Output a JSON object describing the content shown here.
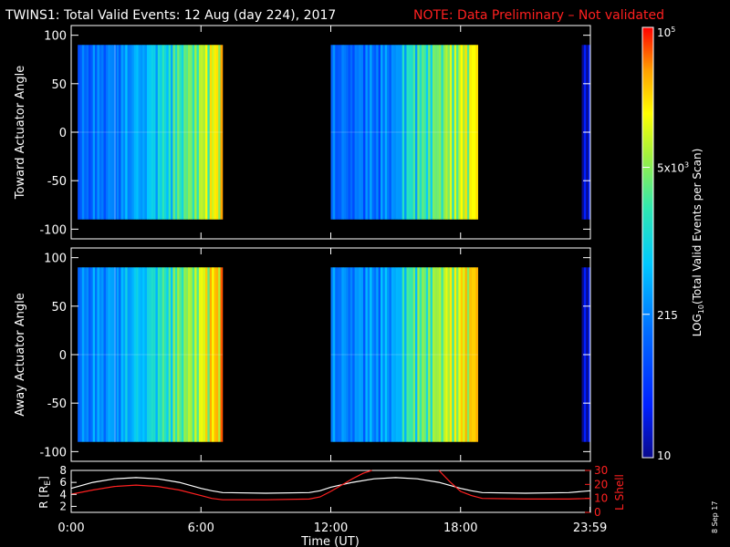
{
  "header": {
    "title": "TWINS1: Total Valid Events: 12 Aug (day 224), 2017",
    "note": "NOTE: Data Preliminary – Not validated",
    "note_color": "#ff2020"
  },
  "side_date": "8 Sep 17",
  "chart_data": [
    {
      "type": "heatmap",
      "id": "toward",
      "ylabel": "Toward Actuator Angle",
      "yticks": [
        "100",
        "50",
        "0",
        "-50",
        "-100"
      ],
      "ylim": [
        -110,
        110
      ],
      "data_angle_range": [
        -90,
        90
      ],
      "xlim_hours": [
        0,
        24
      ],
      "data_segments_hours": [
        [
          0.3,
          7.0
        ],
        [
          12.0,
          18.8
        ],
        [
          23.6,
          24.0
        ]
      ],
      "low_count_band_hours": [
        2.0,
        3.9
      ]
    },
    {
      "type": "heatmap",
      "id": "away",
      "ylabel": "Away Actuator Angle",
      "yticks": [
        "100",
        "50",
        "0",
        "-50",
        "-100"
      ],
      "ylim": [
        -110,
        110
      ],
      "data_angle_range": [
        -90,
        90
      ],
      "xlim_hours": [
        0,
        24
      ],
      "data_segments_hours": [
        [
          0.3,
          7.0
        ],
        [
          12.0,
          18.8
        ],
        [
          23.6,
          24.0
        ]
      ],
      "low_count_band_hours": [
        2.0,
        3.9
      ]
    },
    {
      "type": "line",
      "id": "orbit",
      "ylabel_left": "R [R",
      "ylabel_left_sub": "E",
      "ylabel_left_close": "]",
      "ylabel_right": "L Shell",
      "yticks_left": [
        "8",
        "6",
        "4",
        "2"
      ],
      "ylim_left": [
        1,
        8
      ],
      "yticks_right": [
        "30",
        "20",
        "10",
        "0"
      ],
      "ylim_right": [
        0,
        30
      ],
      "right_axis_color": "#ff2020",
      "xlabel": "Time (UT)",
      "xticks": [
        {
          "h": 0,
          "label": "0:00"
        },
        {
          "h": 6,
          "label": "6:00"
        },
        {
          "h": 12,
          "label": "12:00"
        },
        {
          "h": 18,
          "label": "18:00"
        },
        {
          "h": 23.983,
          "label": "23:59"
        }
      ],
      "series": [
        {
          "color": "#ffffff",
          "x": [
            0,
            1,
            2,
            3,
            4,
            5,
            6,
            6.5,
            7,
            9,
            11,
            11.5,
            12,
            13,
            14,
            15,
            16,
            17,
            18,
            18.5,
            19,
            21,
            23,
            24
          ],
          "y": [
            5.0,
            6.0,
            6.6,
            6.8,
            6.6,
            6.0,
            5.0,
            4.6,
            4.3,
            4.2,
            4.3,
            4.6,
            5.2,
            6.0,
            6.6,
            6.8,
            6.6,
            6.0,
            5.0,
            4.6,
            4.3,
            4.2,
            4.3,
            4.6
          ]
        },
        {
          "color": "#ff2020",
          "x": [
            0,
            1,
            2,
            3,
            4,
            5,
            6,
            6.5,
            7,
            9,
            11,
            11.5,
            12,
            13,
            13.5,
            13.9
          ],
          "y": [
            13,
            16,
            18.5,
            19.5,
            18.5,
            16,
            12,
            10,
            9,
            9,
            9.5,
            11,
            15,
            24,
            28,
            30
          ]
        },
        {
          "color": "#ff2020",
          "x": [
            17.0,
            17.5,
            18,
            18.5,
            19,
            21,
            23,
            24
          ],
          "y": [
            30,
            22,
            15,
            12,
            10,
            9.5,
            9.5,
            10
          ]
        }
      ]
    }
  ],
  "colorbar": {
    "label": "LOG",
    "label_sub": "10",
    "label_rest": "(Total Valid Events per Scan)",
    "ticks": [
      {
        "value": 10,
        "text": "10",
        "sup": ""
      },
      {
        "value": 215,
        "text": "215",
        "sup": ""
      },
      {
        "value": 5000,
        "text": "5x10",
        "sup": "3"
      },
      {
        "value": 100000,
        "text": "10",
        "sup": "5"
      }
    ],
    "range": [
      10,
      100000
    ]
  }
}
